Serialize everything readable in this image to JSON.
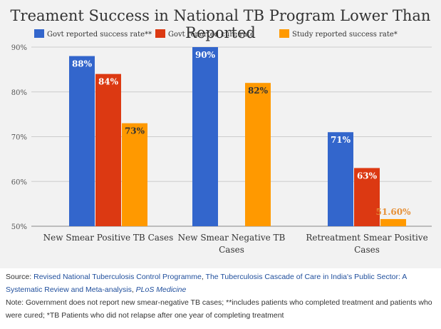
{
  "chart_data": {
    "type": "bar",
    "title": "Treament Success in National TB Program Lower Than Reported",
    "categories": [
      [
        "New Smear Positive TB Cases"
      ],
      [
        "New Smear Negative TB",
        "Cases"
      ],
      [
        "Retreatment Smear Positive",
        "Cases"
      ]
    ],
    "series": [
      {
        "name": "Govt reported success rate**",
        "color": "#3366cc",
        "values": [
          88,
          90,
          71
        ],
        "labels": [
          "88%",
          "90%",
          "71%"
        ],
        "label_color": "#ffffff"
      },
      {
        "name": "Govt reported cure rate",
        "color": "#dc3912",
        "values": [
          84,
          null,
          63
        ],
        "labels": [
          "84%",
          "",
          "63%"
        ],
        "label_color": "#ffffff"
      },
      {
        "name": "Study reported success rate*",
        "color": "#ff9900",
        "values": [
          73,
          82,
          51.6
        ],
        "labels": [
          "73%",
          "82%",
          "51.60%"
        ],
        "label_color": "#333333",
        "label_outside_color": "#e69138"
      }
    ],
    "ylim": [
      50,
      90
    ],
    "yticks": [
      50,
      60,
      70,
      80,
      90
    ],
    "ytick_labels": [
      "50%",
      "60%",
      "70%",
      "80%",
      "90%"
    ],
    "legend_position": "top",
    "grid": true
  },
  "footer": {
    "source_label": "Source: ",
    "source_link_1": "Revised National Tuberculosis Control Programme",
    "source_sep": ", ",
    "source_link_2": "The Tuberculosis Cascade of Care in India's Public Sector: A Systematic Review and Meta-analysis",
    "source_sep2": ", ",
    "source_journal": "PLoS Medicine",
    "note": "Note: Government does not report new smear-negative TB cases; **includes patients who completed treatment and patients who were cured; *TB Patients who did not relapse after one year of completing treatment"
  }
}
